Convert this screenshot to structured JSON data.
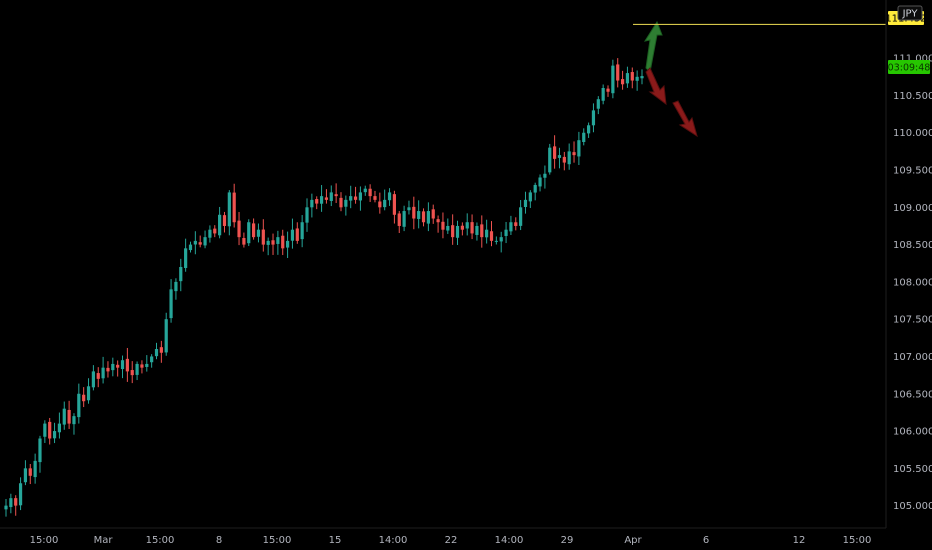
{
  "chart_data": {
    "type": "candlestick",
    "symbol_badge": "JPY",
    "countdown_label": "03:09:48",
    "resistance_label": "111.452",
    "resistance_level": 111.452,
    "current_price": 110.76,
    "ylim": [
      104.7,
      111.78
    ],
    "y_ticks": [
      "105.000",
      "105.500",
      "106.000",
      "106.500",
      "107.000",
      "107.500",
      "108.000",
      "108.500",
      "109.000",
      "109.500",
      "110.000",
      "110.500",
      "111.000"
    ],
    "x_ticks": [
      {
        "label": "15:00",
        "x": 44
      },
      {
        "label": "Mar",
        "x": 103
      },
      {
        "label": "15:00",
        "x": 160
      },
      {
        "label": "8",
        "x": 219
      },
      {
        "label": "15:00",
        "x": 277
      },
      {
        "label": "15",
        "x": 335
      },
      {
        "label": "14:00",
        "x": 393
      },
      {
        "label": "22",
        "x": 451
      },
      {
        "label": "14:00",
        "x": 509
      },
      {
        "label": "29",
        "x": 567
      },
      {
        "label": "Apr",
        "x": 633
      },
      {
        "label": "6",
        "x": 706
      },
      {
        "label": "12",
        "x": 799
      },
      {
        "label": "15:00",
        "x": 857
      }
    ],
    "closes": [
      105.0,
      105.1,
      105.0,
      105.3,
      105.5,
      105.4,
      105.6,
      105.9,
      106.1,
      105.9,
      106.0,
      106.1,
      106.3,
      106.1,
      106.2,
      106.5,
      106.4,
      106.6,
      106.8,
      106.7,
      106.85,
      106.8,
      106.9,
      106.85,
      106.95,
      106.8,
      106.75,
      106.9,
      106.85,
      106.9,
      107.0,
      107.1,
      107.05,
      107.5,
      107.9,
      108.0,
      108.2,
      108.45,
      108.5,
      108.55,
      108.5,
      108.6,
      108.7,
      108.65,
      108.9,
      108.75,
      109.2,
      108.8,
      108.6,
      108.5,
      108.8,
      108.6,
      108.7,
      108.5,
      108.55,
      108.5,
      108.6,
      108.45,
      108.55,
      108.7,
      108.55,
      108.8,
      109.0,
      109.1,
      109.05,
      109.15,
      109.1,
      109.2,
      109.15,
      109.0,
      109.1,
      109.15,
      109.1,
      109.2,
      109.25,
      109.15,
      109.1,
      109.0,
      109.1,
      109.2,
      108.9,
      108.75,
      108.95,
      109.0,
      108.85,
      108.95,
      108.8,
      108.95,
      108.85,
      108.8,
      108.7,
      108.75,
      108.6,
      108.75,
      108.7,
      108.8,
      108.65,
      108.75,
      108.6,
      108.7,
      108.55,
      108.55,
      108.6,
      108.7,
      108.8,
      108.75,
      109.0,
      109.1,
      109.2,
      109.3,
      109.4,
      109.45,
      109.8,
      109.65,
      109.7,
      109.6,
      109.75,
      109.7,
      109.9,
      110.0,
      110.1,
      110.3,
      110.45,
      110.6,
      110.55,
      110.9,
      110.7,
      110.65,
      110.8,
      110.7,
      110.75,
      110.76
    ]
  }
}
